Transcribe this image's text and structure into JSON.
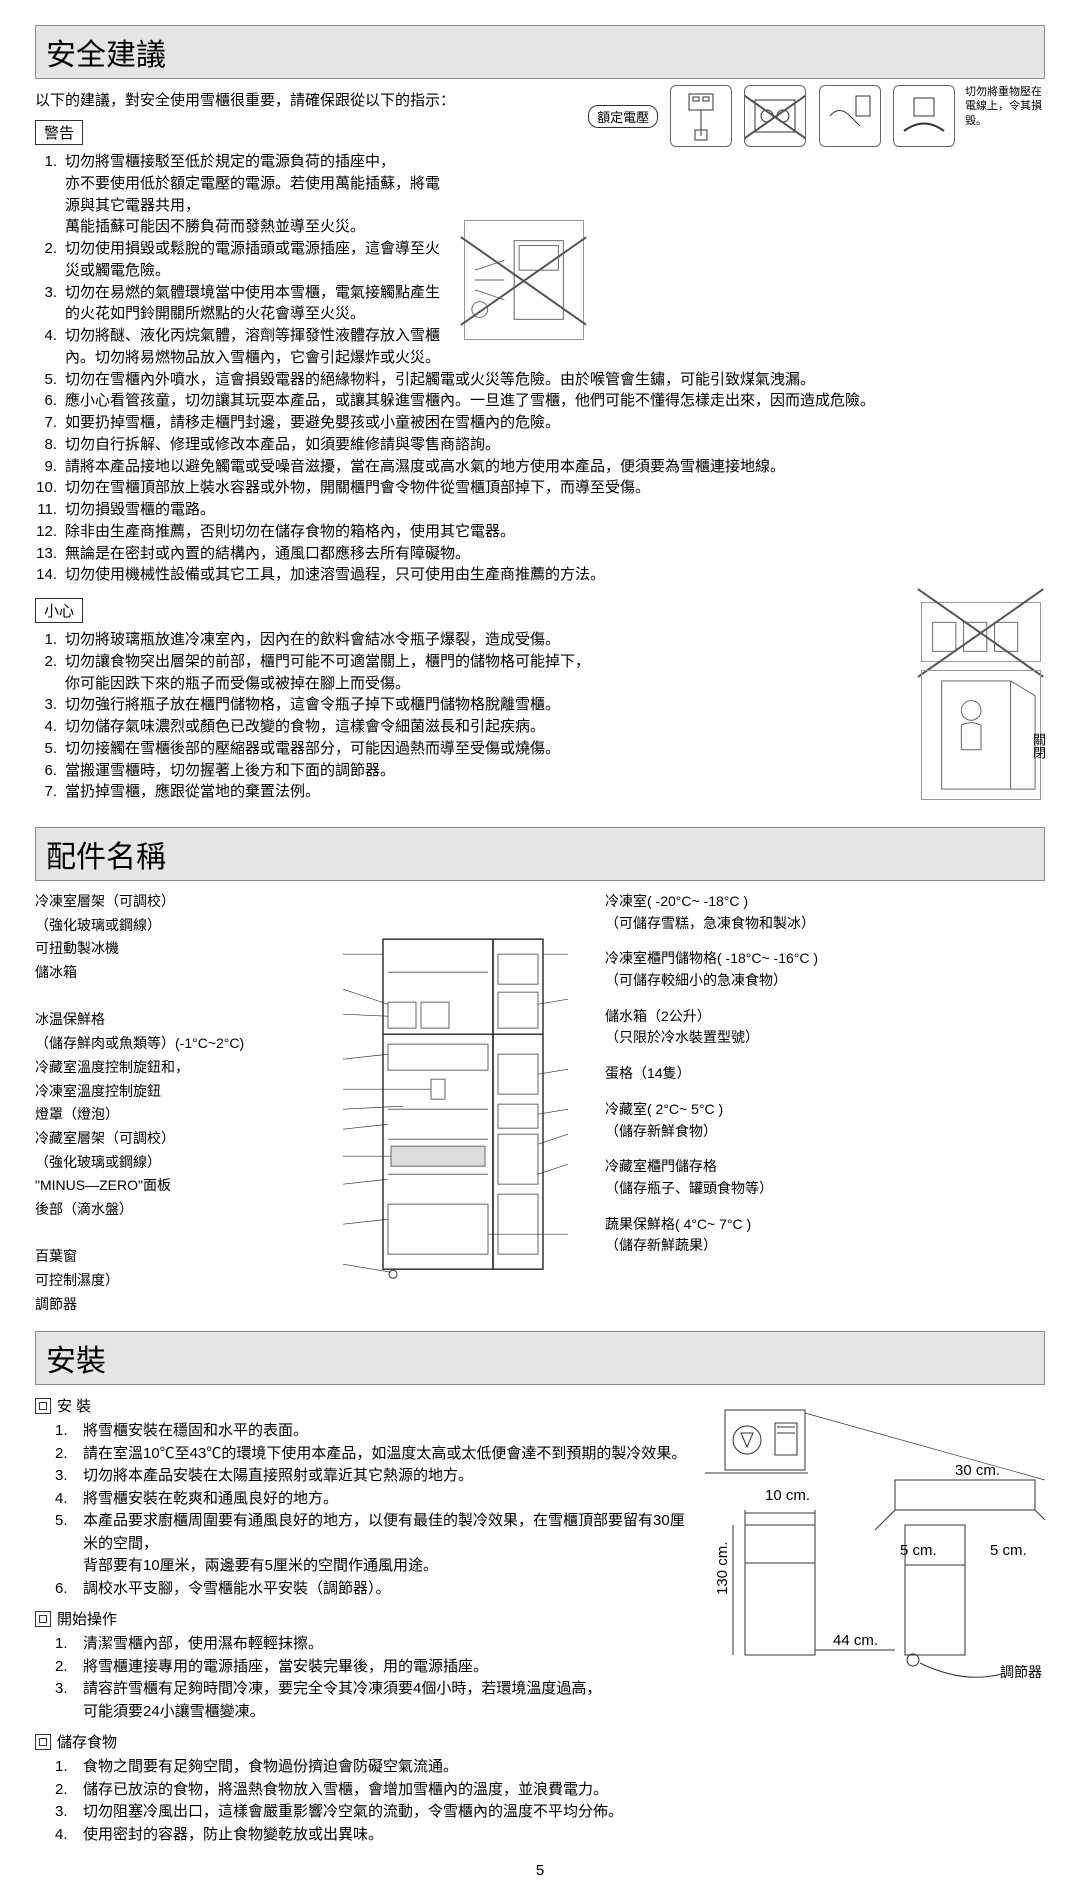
{
  "sections": {
    "safety": {
      "title": "安全建議",
      "intro": "以下的建議，對安全使用雪櫃很重要，請確保跟從以下的指示："
    },
    "parts": {
      "title": "配件名稱"
    },
    "install": {
      "title": "安裝"
    }
  },
  "labels": {
    "warning": "警告",
    "caution": "小心",
    "rated": "額定電壓",
    "iconNote": "切勿將重物壓在電線上，令其損毀。",
    "close": "關閉",
    "adjuster": "調節器"
  },
  "warningList": [
    "切勿將雪櫃接駁至低於規定的電源負荷的插座中，\n亦不要使用低於額定電壓的電源。若使用萬能插蘇，將電源與其它電器共用，\n萬能插蘇可能因不勝負荷而發熱並導至火災。",
    "切勿使用損毀或鬆脫的電源插頭或電源插座，這會導至火災或觸電危險。",
    "切勿在易燃的氣體環境當中使用本雪櫃，電氣接觸點產生的火花如門鈴開關所燃點的火花會導至火災。",
    "切勿將醚、液化丙烷氣體，溶劑等揮發性液體存放入雪櫃內。切勿將易燃物品放入雪櫃內，它會引起爆炸或火災。",
    "切勿在雪櫃內外噴水，這會損毀電器的絕緣物料，引起觸電或火災等危險。由於喉管會生鏽，可能引致煤氣洩漏。",
    "應小心看管孩童，切勿讓其玩耍本產品，或讓其躲進雪櫃內。一旦進了雪櫃，他們可能不懂得怎樣走出來，因而造成危險。",
    "如要扔掉雪櫃，請移走櫃門封邊，要避免嬰孩或小童被困在雪櫃內的危險。",
    "切勿自行拆解、修理或修改本產品，如須要維修請與零售商諮詢。",
    "請將本產品接地以避免觸電或受噪音滋擾，當在高濕度或高水氣的地方使用本產品，便須要為雪櫃連接地線。",
    "切勿在雪櫃頂部放上裝水容器或外物，開關櫃門會令物件從雪櫃頂部掉下，而導至受傷。",
    "切勿損毀雪櫃的電路。",
    "除非由生產商推薦，否則切勿在儲存食物的箱格內，使用其它電器。",
    "無論是在密封或內置的結構內，通風口都應移去所有障礙物。",
    "切勿使用機械性設備或其它工具，加速溶雪過程，只可使用由生產商推薦的方法。"
  ],
  "cautionList": [
    "切勿將玻璃瓶放進冷凍室內，因內在的飲料會結冰令瓶子爆裂，造成受傷。",
    "切勿讓食物突出層架的前部，櫃門可能不可適當關上，櫃門的儲物格可能掉下，\n你可能因跌下來的瓶子而受傷或被掉在腳上而受傷。",
    "切勿強行將瓶子放在櫃門儲物格，這會令瓶子掉下或櫃門儲物格脫離雪櫃。",
    "切勿儲存氣味濃烈或顏色已改變的食物，這樣會令細菌滋長和引起疾病。",
    "切勿接觸在雪櫃後部的壓縮器或電器部分，可能因過熱而導至受傷或燒傷。",
    "當搬運雪櫃時，切勿握著上後方和下面的調節器。",
    "當扔掉雪櫃，應跟從當地的棄置法例。"
  ],
  "partsLeft": [
    "冷凍室層架（可調校）",
    "（強化玻璃或鋼線）",
    "可扭動製冰機",
    "儲冰箱",
    "",
    "冰温保鮮格",
    "（儲存鮮肉或魚類等）(-1°C~2°C)",
    "冷藏室溫度控制旋鈕和，",
    "冷凍室溫度控制旋鈕",
    "燈罩（燈泡）",
    "冷藏室層架（可調校）",
    "（強化玻璃或鋼線）",
    "\"MINUS—ZERO\"面板",
    "後部（滴水盤）",
    "",
    "百葉窗",
    "可控制濕度）",
    "調節器"
  ],
  "partsRight": [
    {
      "t": "冷凍室( -20°C~ -18°C )",
      "s": "（可儲存雪糕，急凍食物和製冰）"
    },
    {
      "t": "冷凍室櫃門儲物格( -18°C~ -16°C )",
      "s": "（可儲存較細小的急凍食物）"
    },
    {
      "t": "儲水箱（2公升）",
      "s": "（只限於冷水裝置型號）"
    },
    {
      "t": "蛋格（14隻）",
      "s": ""
    },
    {
      "t": "冷藏室( 2°C~ 5°C )",
      "s": "（儲存新鮮食物）"
    },
    {
      "t": "冷藏室櫃門儲存格",
      "s": "（儲存瓶子、罐頭食物等）"
    },
    {
      "t": "蔬果保鮮格( 4°C~ 7°C )",
      "s": "（儲存新鮮蔬果）"
    }
  ],
  "installSubs": {
    "install": {
      "title": "安 裝",
      "items": [
        "將雪櫃安裝在穩固和水平的表面。",
        "請在室溫10℃至43℃的環境下使用本產品，如溫度太高或太低便會達不到預期的製冷效果。",
        "切勿將本產品安裝在太陽直接照射或靠近其它熱源的地方。",
        "將雪櫃安裝在乾爽和通風良好的地方。",
        "本產品要求廚櫃周圍要有通風良好的地方，以便有最佳的製冷效果，在雪櫃頂部要留有30厘米的空間，\n背部要有10厘米，兩邊要有5厘米的空間作通風用途。",
        "調校水平支腳，令雪櫃能水平安裝（調節器）。"
      ]
    },
    "operate": {
      "title": "開始操作",
      "items": [
        "清潔雪櫃內部，使用濕布輕輕抹擦。",
        "將雪櫃連接專用的電源插座，當安裝完畢後，用的電源插座。",
        "請容許雪櫃有足夠時間冷凍，要完全令其冷凍須要4個小時，若環境溫度過高，\n可能須要24小讓雪櫃變凍。"
      ]
    },
    "storage": {
      "title": "儲存食物",
      "items": [
        "食物之間要有足夠空間，食物過份擠迫會防礙空氣流通。",
        "儲存已放涼的食物，將溫熱食物放入雪櫃，會增加雪櫃內的溫度，並浪費電力。",
        "切勿阻塞冷風出口，這樣會嚴重影響冷空氣的流動，令雪櫃內的溫度不平均分佈。",
        "使用密封的容器，防止食物變乾放或出異味。"
      ]
    }
  },
  "dims": {
    "top": "30 cm.",
    "back": "10 cm.",
    "sideL": "5 cm.",
    "sideR": "5 cm.",
    "width": "44 cm.",
    "height": "130 cm."
  },
  "pageNum": "5",
  "colors": {
    "headerBg": "#e5e5e5",
    "border": "#888888",
    "line": "#333333"
  }
}
